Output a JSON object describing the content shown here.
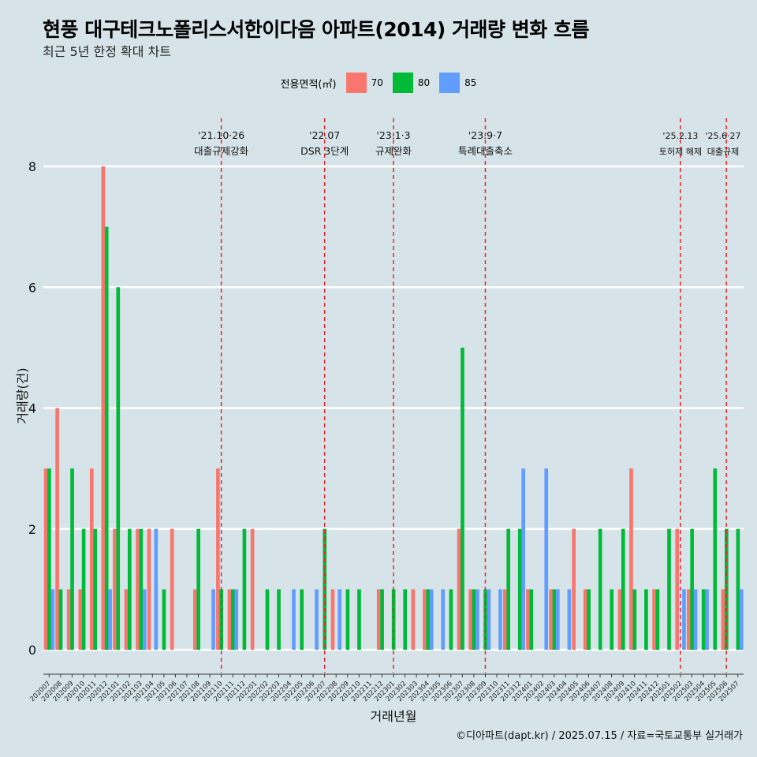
{
  "chart_data": {
    "type": "bar",
    "title": "현풍 대구테크노폴리스서한이다음 아파트(2014) 거래량 변화 흐름",
    "subtitle": "최근 5년 한정 확대 차트",
    "xlabel": "거래년월",
    "ylabel": "거래량(건)",
    "ylim": [
      0,
      8
    ],
    "yticks": [
      0,
      2,
      4,
      6,
      8
    ],
    "legend_title": "전용면적(㎡)",
    "caption": "©디아파트(dapt.kr) / 2025.07.15 / 자료=국토교통부 실거래가",
    "categories": [
      "202007",
      "202008",
      "202009",
      "202010",
      "202011",
      "202012",
      "202101",
      "202102",
      "202103",
      "202104",
      "202105",
      "202106",
      "202107",
      "202108",
      "202109",
      "202110",
      "202111",
      "202112",
      "202201",
      "202202",
      "202203",
      "202204",
      "202205",
      "202206",
      "202207",
      "202208",
      "202209",
      "202210",
      "202211",
      "202212",
      "202301",
      "202302",
      "202303",
      "202304",
      "202305",
      "202306",
      "202307",
      "202308",
      "202309",
      "202310",
      "202311",
      "202312",
      "202401",
      "202402",
      "202403",
      "202404",
      "202405",
      "202406",
      "202407",
      "202408",
      "202409",
      "202410",
      "202411",
      "202412",
      "202501",
      "202502",
      "202503",
      "202504",
      "202505",
      "202506",
      "202507"
    ],
    "series": [
      {
        "name": "70",
        "color": "#f8766d",
        "values": [
          3,
          4,
          1,
          1,
          3,
          8,
          2,
          1,
          2,
          2,
          0,
          2,
          0,
          1,
          0,
          3,
          1,
          0,
          2,
          0,
          0,
          0,
          0,
          0,
          0,
          1,
          0,
          0,
          0,
          1,
          0,
          0,
          1,
          1,
          0,
          0,
          2,
          1,
          0,
          0,
          1,
          0,
          1,
          0,
          1,
          0,
          2,
          1,
          0,
          0,
          1,
          3,
          0,
          1,
          0,
          2,
          1,
          0,
          0,
          1,
          0
        ]
      },
      {
        "name": "80",
        "color": "#00ba38",
        "values": [
          3,
          1,
          3,
          2,
          2,
          7,
          6,
          2,
          2,
          0,
          1,
          0,
          0,
          2,
          0,
          1,
          1,
          2,
          0,
          1,
          1,
          0,
          1,
          0,
          2,
          0,
          1,
          1,
          0,
          1,
          1,
          1,
          0,
          1,
          0,
          1,
          5,
          1,
          1,
          0,
          2,
          2,
          1,
          0,
          1,
          0,
          0,
          1,
          2,
          1,
          2,
          1,
          1,
          1,
          2,
          0,
          2,
          1,
          3,
          2,
          2
        ]
      },
      {
        "name": "85",
        "color": "#619cff",
        "values": [
          1,
          0,
          0,
          0,
          0,
          1,
          0,
          0,
          1,
          2,
          0,
          0,
          0,
          0,
          1,
          0,
          1,
          0,
          0,
          0,
          0,
          1,
          0,
          1,
          0,
          1,
          0,
          0,
          0,
          0,
          0,
          0,
          0,
          1,
          1,
          0,
          0,
          1,
          1,
          1,
          0,
          3,
          0,
          3,
          1,
          1,
          0,
          0,
          0,
          0,
          0,
          0,
          0,
          0,
          0,
          1,
          1,
          1,
          0,
          0,
          1
        ]
      }
    ],
    "events": [
      {
        "category": "202110",
        "date": "'21.10·26",
        "label": "대출규제강화"
      },
      {
        "category": "202207",
        "date": "'22.07",
        "label": "DSR 3단계"
      },
      {
        "category": "202301",
        "date": "'23.1·3",
        "label": "규제완화"
      },
      {
        "category": "202309",
        "date": "'23.9·7",
        "label": "특례대출축소"
      },
      {
        "category": "202502",
        "date": "'25.2.13",
        "label": "토허제 해제"
      },
      {
        "category": "202506",
        "date": "'25.6·27",
        "label": "대출규제"
      }
    ],
    "grid": true,
    "legend_position": "top"
  }
}
